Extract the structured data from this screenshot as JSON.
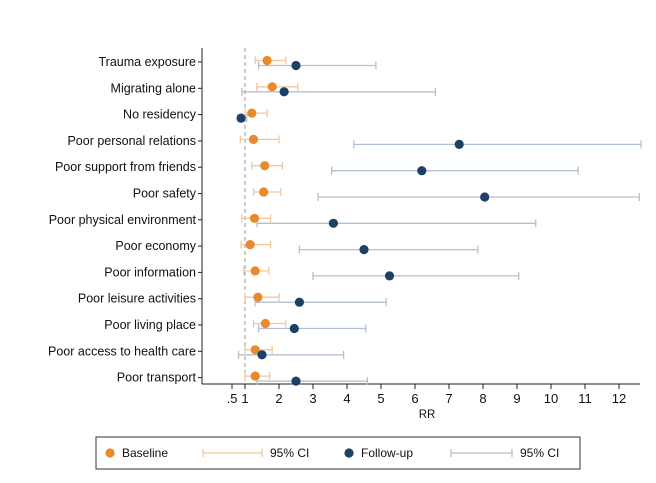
{
  "chart_data": {
    "type": "scatter",
    "subtype": "forest-plot",
    "title": "",
    "xlabel": "RR",
    "ylabel": "",
    "x_ticks": [
      ".5",
      "1",
      "2",
      "3",
      "4",
      "5",
      "6",
      "7",
      "8",
      "9",
      "10",
      "11",
      "12"
    ],
    "reference_line": 1,
    "grid": false,
    "legend_position": "bottom",
    "categories": [
      "Trauma exposure",
      "Migrating alone",
      "No residency",
      "Poor personal relations",
      "Poor support from friends",
      "Poor safety",
      "Poor physical environment",
      "Poor economy",
      "Poor information",
      "Poor leisure activities",
      "Poor living place",
      "Poor access to health care",
      "Poor transport"
    ],
    "series": [
      {
        "name": "Baseline",
        "color": "#e8892c",
        "ci_color": "#f3c79c",
        "ci_name": "95% CI",
        "values": [
          1.65,
          1.8,
          1.2,
          1.25,
          1.58,
          1.55,
          1.28,
          1.15,
          1.3,
          1.38,
          1.6,
          1.3,
          1.3
        ],
        "ci": [
          [
            1.3,
            2.2
          ],
          [
            1.35,
            2.55
          ],
          [
            1.0,
            1.65
          ],
          [
            0.82,
            2.0
          ],
          [
            1.2,
            2.1
          ],
          [
            1.25,
            2.05
          ],
          [
            0.88,
            1.75
          ],
          [
            0.85,
            1.75
          ],
          [
            0.95,
            1.7
          ],
          [
            1.0,
            2.0
          ],
          [
            1.25,
            2.2
          ],
          [
            1.0,
            1.8
          ],
          [
            1.0,
            1.72
          ]
        ]
      },
      {
        "name": "Follow-up",
        "color": "#1e3f66",
        "ci_color": "#b2c1d1",
        "ci_name": "95% CI",
        "values": [
          2.5,
          2.15,
          0.85,
          7.3,
          6.2,
          8.05,
          3.6,
          4.5,
          5.25,
          2.6,
          2.45,
          1.5,
          2.5
        ],
        "ci": [
          [
            1.4,
            4.85
          ],
          [
            0.88,
            6.6
          ],
          [
            0.72,
            1.05
          ],
          [
            4.2,
            12.65
          ],
          [
            3.55,
            10.8
          ],
          [
            3.15,
            12.6
          ],
          [
            1.35,
            9.55
          ],
          [
            2.6,
            7.85
          ],
          [
            3.0,
            9.05
          ],
          [
            1.3,
            5.15
          ],
          [
            1.4,
            4.55
          ],
          [
            0.75,
            3.9
          ],
          [
            1.35,
            4.6
          ]
        ]
      }
    ],
    "xlim": [
      0.5,
      12.8
    ]
  }
}
